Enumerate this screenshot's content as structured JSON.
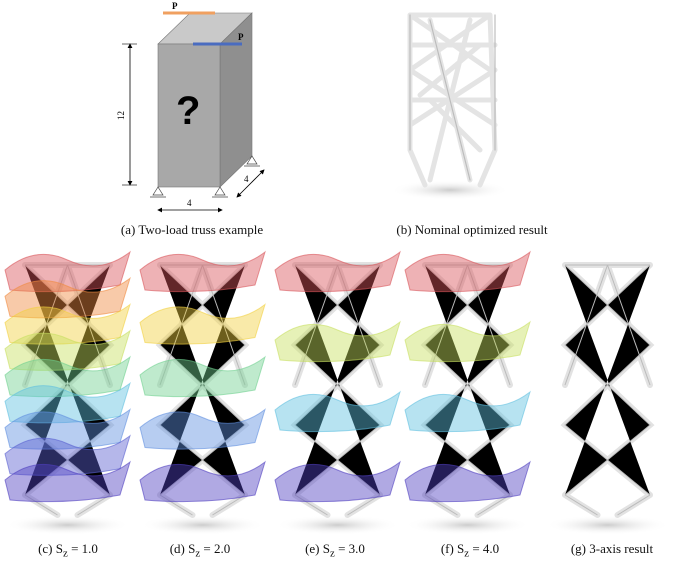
{
  "panel_a": {
    "caption": "(a) Two-load truss example",
    "load_label_1": "P",
    "load_label_2": "P",
    "height_dim": "12",
    "width_dim": "4",
    "depth_dim": "4",
    "unknown_mark": "?",
    "load_colors": [
      "#f0a060",
      "#4a6cc0"
    ]
  },
  "panel_b": {
    "caption": "(b) Nominal optimized result"
  },
  "panel_c": {
    "caption_prefix": "(c) S",
    "caption_sub": "z",
    "caption_suffix": " = 1.0"
  },
  "panel_d": {
    "caption_prefix": "(d) S",
    "caption_sub": "z",
    "caption_suffix": " = 2.0"
  },
  "panel_e": {
    "caption_prefix": "(e) S",
    "caption_sub": "z",
    "caption_suffix": " = 3.0"
  },
  "panel_f": {
    "caption_prefix": "(f) S",
    "caption_sub": "z",
    "caption_suffix": " = 4.0"
  },
  "panel_g": {
    "caption": "(g) 3-axis result"
  }
}
